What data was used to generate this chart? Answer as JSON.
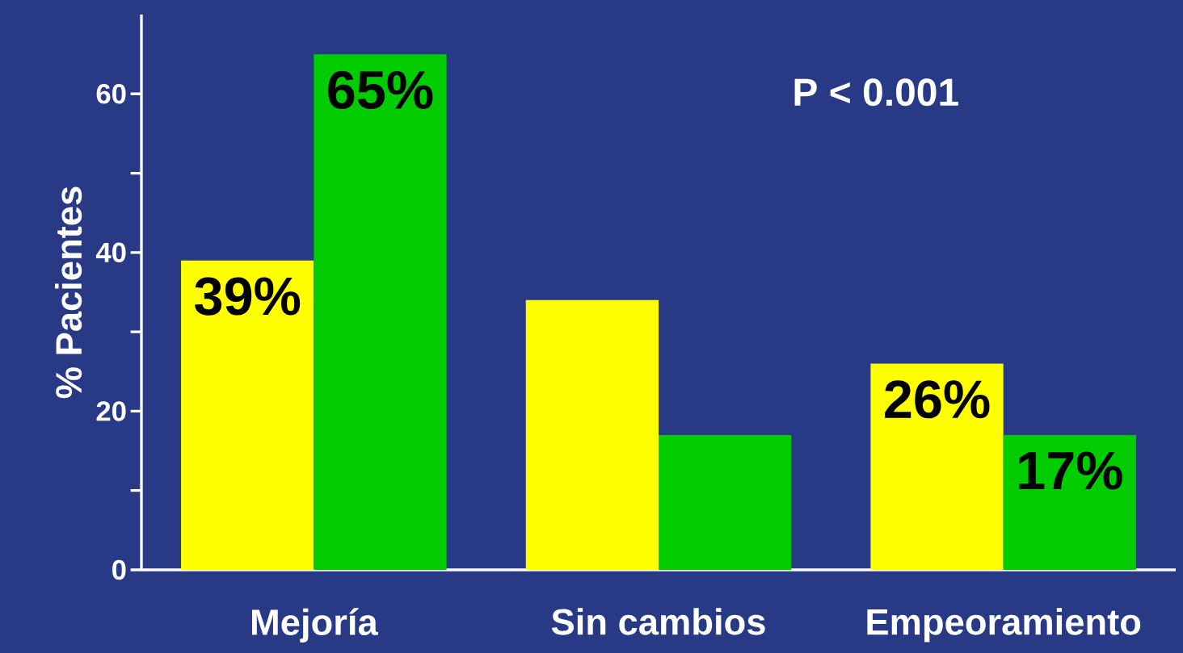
{
  "chart_data": {
    "type": "bar",
    "ylabel": "% Pacientes",
    "categories": [
      "Mejoría",
      "Sin cambios",
      "Empeoramiento"
    ],
    "series": [
      {
        "color": "#ffff00",
        "values": [
          39,
          34,
          26
        ],
        "value_labels": [
          "39%",
          null,
          "26%"
        ]
      },
      {
        "color": "#00cc00",
        "values": [
          65,
          17,
          17
        ],
        "value_labels": [
          "65%",
          null,
          "17%"
        ]
      }
    ],
    "ylim": [
      0,
      70
    ],
    "yticks": [
      0,
      {
        "value": 10,
        "label": null
      },
      20,
      {
        "value": 30,
        "label": null
      },
      40,
      {
        "value": 50,
        "label": null
      },
      60
    ],
    "annotations": [
      "P < 0.001"
    ],
    "grid": false
  }
}
